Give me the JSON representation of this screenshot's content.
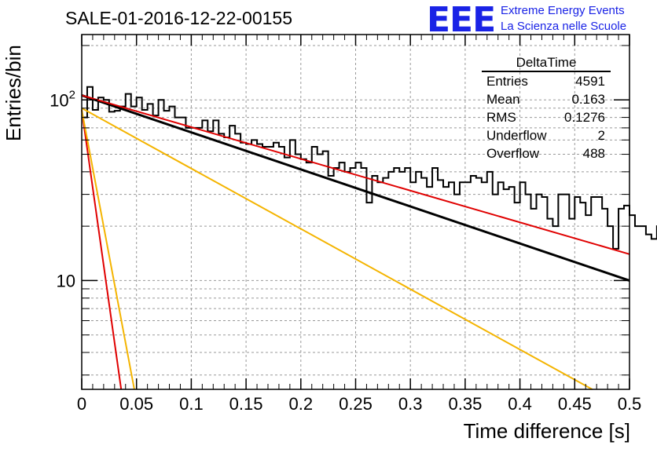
{
  "title": "SALE-01-2016-12-22-00155",
  "logo": {
    "mark": "EEE",
    "line1": "Extreme Energy Events",
    "line2": "La Scienza nelle Scuole"
  },
  "stats": {
    "name": "DeltaTime",
    "rows": [
      {
        "label": "Entries",
        "value": "4591"
      },
      {
        "label": "Mean",
        "value": "0.163"
      },
      {
        "label": "RMS",
        "value": "0.1276"
      },
      {
        "label": "Underflow",
        "value": "2"
      },
      {
        "label": "Overflow",
        "value": "488"
      }
    ]
  },
  "chart_data": {
    "type": "histogram",
    "title": "SALE-01-2016-12-22-00155",
    "xlabel": "Time difference [s]",
    "ylabel": "Entries/bin",
    "xlim": [
      0,
      0.5
    ],
    "ylim": [
      2.5,
      230
    ],
    "yscale": "log",
    "grid": true,
    "x_ticks": [
      "0",
      "0.05",
      "0.1",
      "0.15",
      "0.2",
      "0.25",
      "0.3",
      "0.35",
      "0.4",
      "0.45",
      "0.5"
    ],
    "y_ticks": [
      {
        "value": 10,
        "label": "10"
      },
      {
        "value": 100,
        "label": "10^2"
      }
    ],
    "bin_width": 0.005,
    "bin_values": [
      80,
      118,
      88,
      103,
      100,
      86,
      87,
      92,
      108,
      92,
      103,
      88,
      95,
      82,
      100,
      87,
      92,
      80,
      80,
      70,
      70,
      70,
      77,
      67,
      77,
      65,
      62,
      72,
      65,
      58,
      57,
      60,
      57,
      55,
      55,
      58,
      55,
      48,
      60,
      50,
      47,
      45,
      55,
      50,
      52,
      38,
      42,
      45,
      40,
      42,
      45,
      42,
      27,
      38,
      35,
      37,
      40,
      42,
      40,
      42,
      35,
      40,
      37,
      33,
      42,
      36,
      33,
      35,
      30,
      35,
      35,
      38,
      37,
      35,
      40,
      30,
      35,
      32,
      33,
      27,
      35,
      30,
      25,
      30,
      29,
      22,
      20,
      30,
      30,
      22,
      29,
      27,
      23,
      29,
      29,
      25,
      20,
      15,
      25,
      26,
      23,
      20,
      20,
      18,
      17,
      20,
      28,
      15,
      15,
      17,
      20,
      20,
      25,
      22,
      15,
      15,
      20,
      25,
      19,
      20,
      15,
      15,
      15,
      20,
      20,
      15,
      22,
      18,
      14,
      15,
      15,
      17,
      14,
      12,
      17,
      12,
      10,
      12,
      15,
      13,
      17,
      20,
      5,
      12,
      12,
      15,
      12,
      9,
      17,
      12,
      10,
      12,
      10,
      10,
      10,
      10,
      9,
      8,
      10,
      8,
      10,
      12,
      12,
      8,
      8,
      10,
      10,
      9,
      10,
      10,
      10,
      10,
      10,
      10,
      10,
      10,
      10,
      9,
      9,
      9,
      10,
      10,
      9,
      9,
      8,
      8,
      8,
      8,
      8,
      8,
      8,
      8,
      9,
      9,
      9,
      9,
      8,
      8,
      8,
      8
    ],
    "series": [
      {
        "name": "",
        "color": "#000000",
        "type": "exp",
        "points": [
          [
            0,
            106
          ],
          [
            0.5,
            10
          ]
        ]
      },
      {
        "name": "",
        "color": "#e00000",
        "type": "exp",
        "points": [
          [
            0,
            106
          ],
          [
            0.5,
            14
          ]
        ]
      },
      {
        "name": "",
        "color": "#f4b400",
        "type": "exp",
        "points": [
          [
            0,
            90
          ],
          [
            0.466,
            2.5
          ]
        ]
      },
      {
        "name": "",
        "color": "#e00000",
        "type": "exp",
        "points": [
          [
            0,
            88
          ],
          [
            0.036,
            2.5
          ]
        ]
      },
      {
        "name": "",
        "color": "#f4b400",
        "type": "exp",
        "points": [
          [
            0,
            88
          ],
          [
            0.048,
            2.5
          ]
        ]
      }
    ]
  }
}
